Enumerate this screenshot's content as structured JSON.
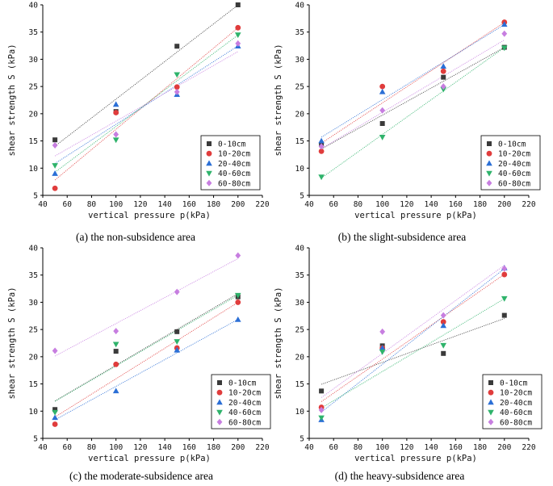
{
  "styles": {
    "series_colors": [
      "#3a3a3a",
      "#e03c3c",
      "#2b6fd6",
      "#2fb36b",
      "#c77ee0"
    ],
    "series_markers": [
      "square",
      "circle",
      "triangle-up",
      "triangle-down",
      "diamond"
    ]
  },
  "chart_data": [
    {
      "type": "scatter",
      "caption": "(a) the non-subsidence area",
      "xlabel": "vertical pressure p(kPa)",
      "ylabel": "shear strength S (kPa)",
      "xlim": [
        40,
        220
      ],
      "ylim": [
        5,
        40
      ],
      "xticks": [
        "40",
        "60",
        "80",
        "100",
        "120",
        "140",
        "160",
        "180",
        "200",
        "220"
      ],
      "yticks": [
        "5",
        "10",
        "15",
        "20",
        "25",
        "30",
        "35",
        "40"
      ],
      "x": [
        50,
        100,
        150,
        200
      ],
      "series": [
        {
          "name": "0-10cm",
          "values": [
            15.2,
            20.4,
            32.4,
            40.0
          ]
        },
        {
          "name": "10-20cm",
          "values": [
            6.3,
            20.2,
            24.9,
            35.8
          ]
        },
        {
          "name": "20-40cm",
          "values": [
            9.0,
            21.7,
            23.5,
            32.4
          ]
        },
        {
          "name": "40-60cm",
          "values": [
            10.5,
            15.2,
            27.2,
            34.5
          ]
        },
        {
          "name": "60-80cm",
          "values": [
            14.2,
            16.2,
            24.0,
            32.9
          ]
        }
      ]
    },
    {
      "type": "scatter",
      "caption": "(b) the slight-subsidence area",
      "xlabel": "vertical pressure p(kPa)",
      "ylabel": "shear strength S (kPa)",
      "xlim": [
        40,
        220
      ],
      "ylim": [
        5,
        40
      ],
      "xticks": [
        "40",
        "60",
        "80",
        "100",
        "120",
        "140",
        "160",
        "180",
        "200",
        "220"
      ],
      "yticks": [
        "5",
        "10",
        "15",
        "20",
        "25",
        "30",
        "35",
        "40"
      ],
      "x": [
        50,
        100,
        150,
        200
      ],
      "series": [
        {
          "name": "0-10cm",
          "values": [
            14.3,
            18.2,
            26.7,
            32.2
          ]
        },
        {
          "name": "10-20cm",
          "values": [
            13.1,
            25.0,
            27.8,
            36.8
          ]
        },
        {
          "name": "20-40cm",
          "values": [
            15.0,
            24.0,
            28.7,
            36.4
          ]
        },
        {
          "name": "40-60cm",
          "values": [
            8.4,
            15.7,
            24.5,
            32.1
          ]
        },
        {
          "name": "60-80cm",
          "values": [
            14.0,
            20.6,
            25.0,
            34.7
          ]
        }
      ]
    },
    {
      "type": "scatter",
      "caption": "(c) the moderate-subsidence area",
      "xlabel": "vertical pressure p(kPa)",
      "ylabel": "shear strength S (kPa)",
      "xlim": [
        40,
        220
      ],
      "ylim": [
        5,
        40
      ],
      "xticks": [
        "40",
        "60",
        "80",
        "100",
        "120",
        "140",
        "160",
        "180",
        "200",
        "220"
      ],
      "yticks": [
        "5",
        "10",
        "15",
        "20",
        "25",
        "30",
        "35",
        "40"
      ],
      "x": [
        50,
        100,
        150,
        200
      ],
      "series": [
        {
          "name": "0-10cm",
          "values": [
            10.3,
            21.0,
            24.6,
            31.0
          ]
        },
        {
          "name": "10-20cm",
          "values": [
            7.6,
            18.6,
            21.6,
            30.0
          ]
        },
        {
          "name": "20-40cm",
          "values": [
            8.8,
            13.7,
            21.2,
            26.8
          ]
        },
        {
          "name": "40-60cm",
          "values": [
            9.8,
            22.3,
            22.8,
            31.3
          ]
        },
        {
          "name": "60-80cm",
          "values": [
            21.1,
            24.7,
            31.9,
            38.6
          ]
        }
      ]
    },
    {
      "type": "scatter",
      "caption": "(d) the heavy-subsidence area",
      "xlabel": "vertical pressure p(kPa)",
      "ylabel": "shear strength S (kPa)",
      "xlim": [
        40,
        220
      ],
      "ylim": [
        5,
        40
      ],
      "xticks": [
        "40",
        "60",
        "80",
        "100",
        "120",
        "140",
        "160",
        "180",
        "200",
        "220"
      ],
      "yticks": [
        "5",
        "10",
        "15",
        "20",
        "25",
        "30",
        "35",
        "40"
      ],
      "x": [
        50,
        100,
        150,
        200
      ],
      "series": [
        {
          "name": "0-10cm",
          "values": [
            13.7,
            22.0,
            20.6,
            27.6
          ]
        },
        {
          "name": "10-20cm",
          "values": [
            10.7,
            21.6,
            26.4,
            35.1
          ]
        },
        {
          "name": "20-40cm",
          "values": [
            8.4,
            21.6,
            25.7,
            36.3
          ]
        },
        {
          "name": "40-60cm",
          "values": [
            8.8,
            20.9,
            22.1,
            30.7
          ]
        },
        {
          "name": "60-80cm",
          "values": [
            10.2,
            24.6,
            27.6,
            36.2
          ]
        }
      ]
    }
  ]
}
